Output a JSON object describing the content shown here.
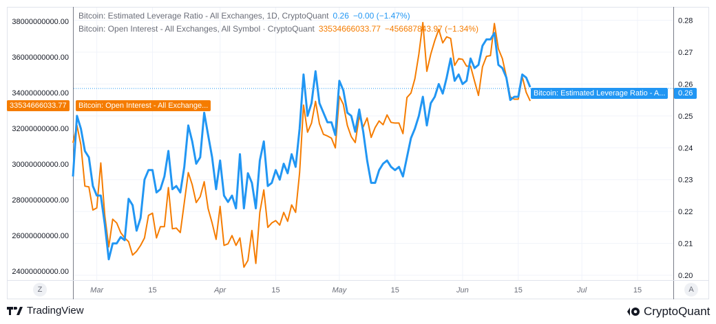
{
  "legend": {
    "leverage": {
      "title": "Bitcoin: Estimated Leverage Ratio - All Exchanges, 1D, CryptoQuant",
      "value": "0.26",
      "change": "−0.00 (−1.47%)"
    },
    "open_interest": {
      "title": "Bitcoin: Open Interest - All Exchanges, All Symbol · CryptoQuant",
      "value": "33534666033.77",
      "change": "−456687843.97 (−1.34%)"
    }
  },
  "price_labels": {
    "oi_value": "33534666033.77",
    "oi_name": "Bitcoin: Open Interest - All Exchange...",
    "lev_name": "Bitcoin: Estimated Leverage Ratio - A...",
    "lev_value": "0.26"
  },
  "buttons": {
    "left_scale": "Z",
    "right_scale": "A"
  },
  "footer": {
    "left_brand": "TradingView",
    "right_brand": "CryptoQuant"
  },
  "colors": {
    "leverage": "#2196f3",
    "open_interest": "#f57c00",
    "grid": "#f0f3fa",
    "axis_text": "#6a6d78"
  },
  "chart_data": {
    "type": "line",
    "title": "",
    "x_unit": "days since Feb 24",
    "xlim": [
      0,
      151
    ],
    "x_ticks": [
      {
        "day": 6,
        "label": "Mar",
        "major": true
      },
      {
        "day": 20,
        "label": "15"
      },
      {
        "day": 37,
        "label": "Apr",
        "major": true
      },
      {
        "day": 51,
        "label": "15"
      },
      {
        "day": 67,
        "label": "May",
        "major": true
      },
      {
        "day": 81,
        "label": "15"
      },
      {
        "day": 98,
        "label": "Jun",
        "major": true
      },
      {
        "day": 112,
        "label": "15"
      },
      {
        "day": 128,
        "label": "Jul",
        "major": true
      },
      {
        "day": 142,
        "label": "15"
      }
    ],
    "left_axis": {
      "ylim": [
        23500000000.0,
        38800000000.0
      ],
      "ticks": [
        "24000000000.00",
        "26000000000.00",
        "28000000000.00",
        "30000000000.00",
        "32000000000.00",
        "34000000000.00",
        "36000000000.00",
        "38000000000.00"
      ],
      "tick_values": [
        24000000000.0,
        26000000000.0,
        28000000000.0,
        30000000000.0,
        32000000000.0,
        34000000000.0,
        36000000000.0,
        38000000000.0
      ]
    },
    "right_axis": {
      "ylim": [
        0.1985,
        0.2842
      ],
      "ticks": [
        "0.20",
        "0.21",
        "0.22",
        "0.23",
        "0.24",
        "0.25",
        "0.26",
        "0.27",
        "0.28"
      ],
      "tick_values": [
        0.2,
        0.21,
        0.22,
        0.23,
        0.24,
        0.25,
        0.26,
        0.27,
        0.28
      ]
    },
    "series": [
      {
        "name": "Bitcoin: Estimated Leverage Ratio - All Exchanges",
        "axis": "right",
        "color": "#2196f3",
        "values": [
          0.231,
          0.25,
          0.246,
          0.239,
          0.237,
          0.228,
          0.225,
          0.225,
          0.216,
          0.205,
          0.21,
          0.21,
          0.212,
          0.211,
          0.224,
          0.222,
          0.214,
          0.218,
          0.23,
          0.233,
          0.233,
          0.226,
          0.227,
          0.231,
          0.239,
          0.227,
          0.228,
          0.226,
          0.234,
          0.247,
          0.242,
          0.235,
          0.237,
          0.251,
          0.244,
          0.237,
          0.227,
          0.236,
          0.225,
          0.223,
          0.225,
          0.221,
          0.238,
          0.221,
          0.232,
          0.229,
          0.221,
          0.236,
          0.242,
          0.228,
          0.229,
          0.233,
          0.23,
          0.235,
          0.232,
          0.238,
          0.234,
          0.246,
          0.263,
          0.25,
          0.254,
          0.264,
          0.254,
          0.251,
          0.248,
          0.248,
          0.244,
          0.261,
          0.258,
          0.251,
          0.25,
          0.245,
          0.252,
          0.245,
          0.236,
          0.229,
          0.229,
          0.233,
          0.235,
          0.236,
          0.234,
          0.233,
          0.234,
          0.231,
          0.237,
          0.243,
          0.246,
          0.25,
          0.256,
          0.247,
          0.254,
          0.256,
          0.26,
          0.257,
          0.262,
          0.268,
          0.261,
          0.263,
          0.26,
          0.261,
          0.268,
          0.265,
          0.266,
          0.272,
          0.274,
          0.274,
          0.276,
          0.266,
          0.265,
          0.262,
          0.255,
          0.256,
          0.256,
          0.263,
          0.262,
          0.259
        ]
      },
      {
        "name": "Bitcoin: Open Interest - All Exchanges, All Symbol",
        "axis": "left",
        "color": "#f57c00",
        "values": [
          31190000000.0,
          32160000000.0,
          31070000000.0,
          28760000000.0,
          28720000000.0,
          27420000000.0,
          27540000000.0,
          30060000000.0,
          27120000000.0,
          25360000000.0,
          26910000000.0,
          26700000000.0,
          26160000000.0,
          25860000000.0,
          25650000000.0,
          24900000000.0,
          25110000000.0,
          25440000000.0,
          25860000000.0,
          27120000000.0,
          27250000000.0,
          25860000000.0,
          26490000000.0,
          26490000000.0,
          28680000000.0,
          26370000000.0,
          26410000000.0,
          26160000000.0,
          27840000000.0,
          29520000000.0,
          28840000000.0,
          27840000000.0,
          28170000000.0,
          29010000000.0,
          27500000000.0,
          26700000000.0,
          25780000000.0,
          27630000000.0,
          25440000000.0,
          25530000000.0,
          25990000000.0,
          25440000000.0,
          25860000000.0,
          24220000000.0,
          24600000000.0,
          26280000000.0,
          24430000000.0,
          27290000000.0,
          28550000000.0,
          26450000000.0,
          26700000000.0,
          26830000000.0,
          26580000000.0,
          27290000000.0,
          26790000000.0,
          27710000000.0,
          27290000000.0,
          29520000000.0,
          33300000000.0,
          31780000000.0,
          32290000000.0,
          33510000000.0,
          32250000000.0,
          31660000000.0,
          31570000000.0,
          31450000000.0,
          30900000000.0,
          33800000000.0,
          33340000000.0,
          32160000000.0,
          31530000000.0,
          31200000000.0,
          32670000000.0,
          32080000000.0,
          32580000000.0,
          31490000000.0,
          32040000000.0,
          32410000000.0,
          32200000000.0,
          32750000000.0,
          32330000000.0,
          32290000000.0,
          32290000000.0,
          31700000000.0,
          33720000000.0,
          33970000000.0,
          34770000000.0,
          36150000000.0,
          37920000000.0,
          35190000000.0,
          36150000000.0,
          36910000000.0,
          37540000000.0,
          36780000000.0,
          37120000000.0,
          37030000000.0,
          35520000000.0,
          35900000000.0,
          35860000000.0,
          35480000000.0,
          35480000000.0,
          34640000000.0,
          33840000000.0,
          35440000000.0,
          36030000000.0,
          36070000000.0,
          37870000000.0,
          36450000000.0,
          35900000000.0,
          34890000000.0,
          33760000000.0,
          33630000000.0,
          33630000000.0,
          34890000000.0,
          34010000000.0,
          33530000000.0
        ]
      }
    ],
    "current_value_line": {
      "series": 0,
      "value": 0.2586,
      "style": "dotted"
    },
    "legend_placement": "top-left"
  }
}
